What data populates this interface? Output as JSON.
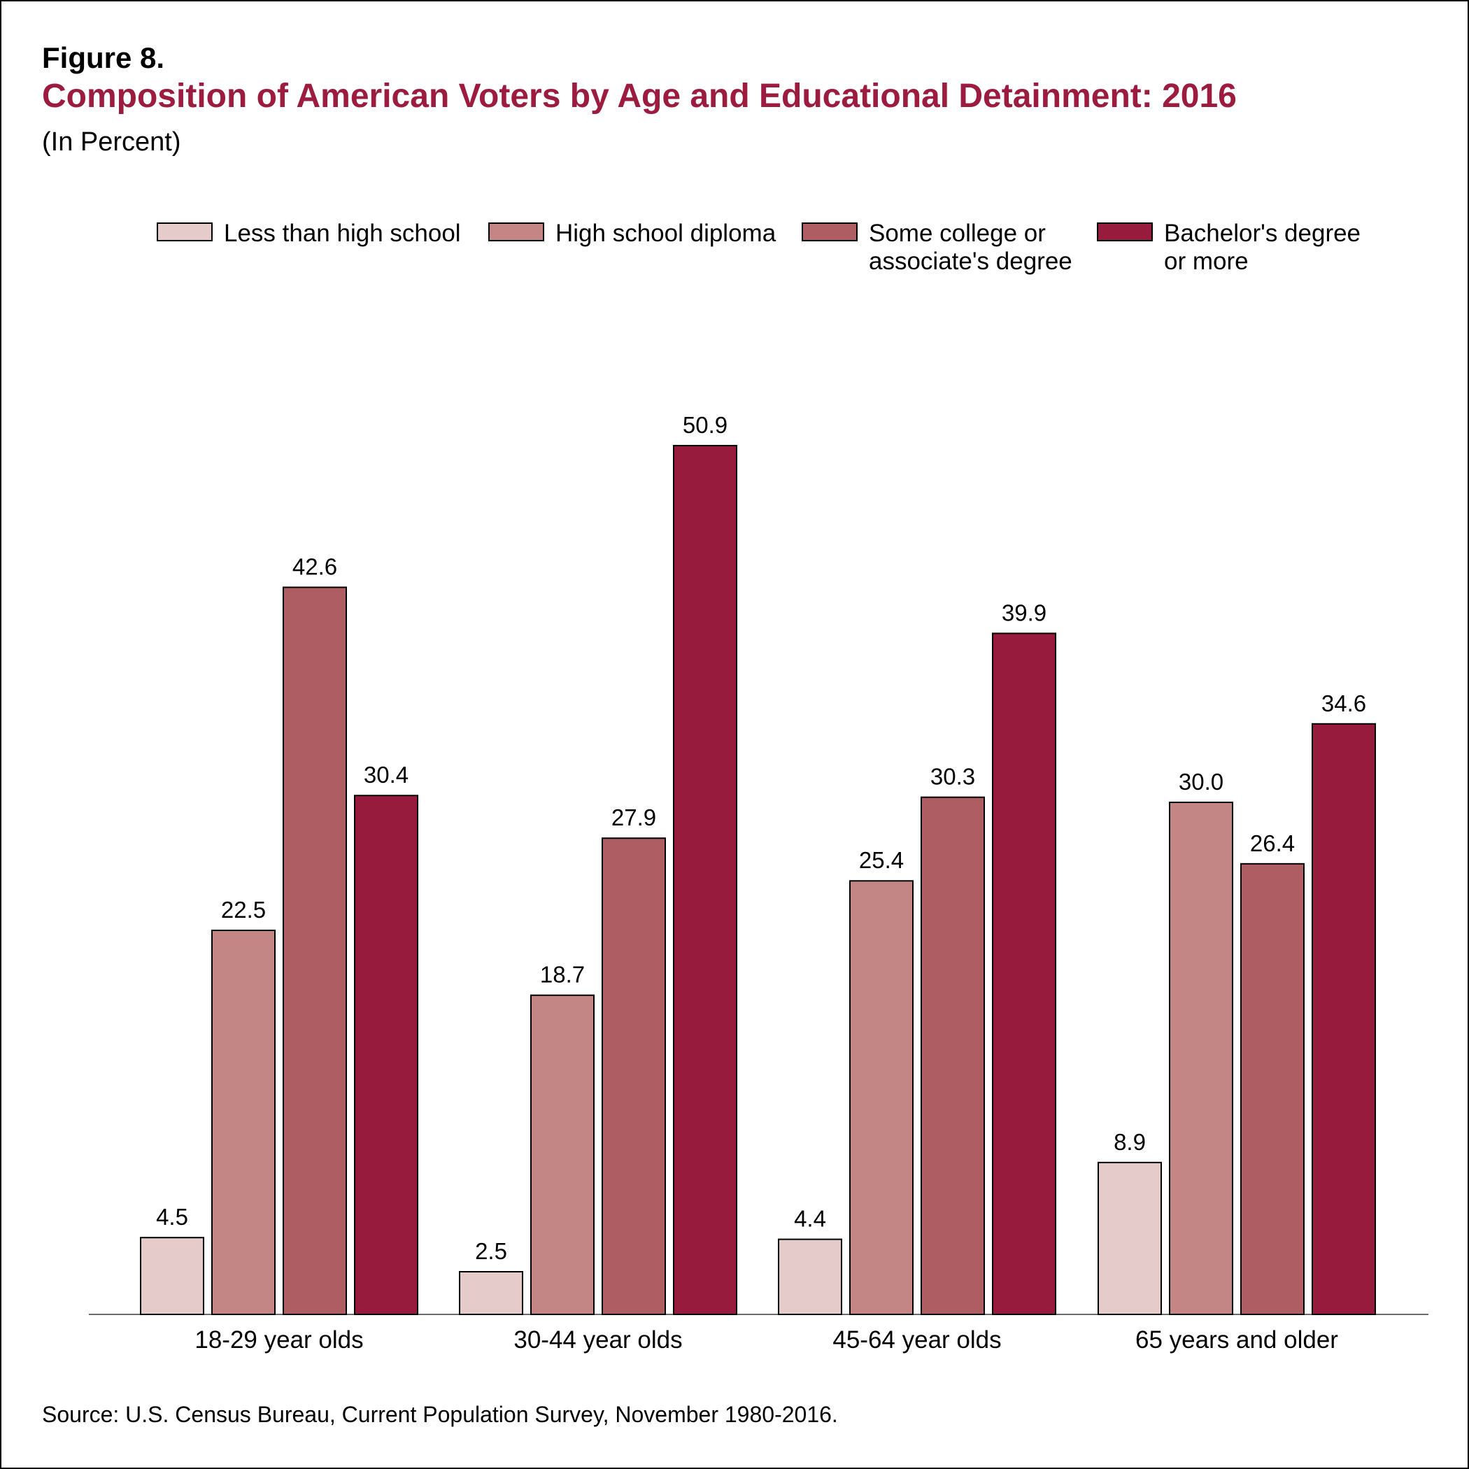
{
  "figure_label": "Figure 8.",
  "title": "Composition of American Voters by Age and Educational Detainment: 2016",
  "subtitle": "(In Percent)",
  "source": "Source: U.S. Census Bureau, Current Population Survey, November 1980-2016.",
  "legend": [
    {
      "label": "Less than high school",
      "color": "#e6cbcb"
    },
    {
      "label": "High school diploma",
      "color": "#c48685"
    },
    {
      "label": "Some college or\nassociate's degree",
      "color": "#ae5d62"
    },
    {
      "label": "Bachelor's degree\nor more",
      "color": "#961b3c"
    }
  ],
  "chart_data": {
    "type": "bar",
    "title": "Composition of American Voters by Age and Educational Detainment: 2016",
    "subtitle": "(In Percent)",
    "categories": [
      "18-29 year olds",
      "30-44 year olds",
      "45-64 year olds",
      "65 years and older"
    ],
    "series": [
      {
        "name": "Less than high school",
        "color": "#e6cbcb",
        "values": [
          4.5,
          2.5,
          4.4,
          8.9
        ]
      },
      {
        "name": "High school diploma",
        "color": "#c48685",
        "values": [
          22.5,
          18.7,
          25.4,
          30.0
        ]
      },
      {
        "name": "Some college or associate's degree",
        "color": "#ae5d62",
        "values": [
          42.6,
          27.9,
          30.3,
          26.4
        ]
      },
      {
        "name": "Bachelor's degree or more",
        "color": "#961b3c",
        "values": [
          30.4,
          50.9,
          39.9,
          34.6
        ]
      }
    ],
    "value_labels": [
      [
        "4.5",
        "2.5",
        "4.4",
        "8.9"
      ],
      [
        "22.5",
        "18.7",
        "25.4",
        "30.0"
      ],
      [
        "42.6",
        "27.9",
        "30.3",
        "26.4"
      ],
      [
        "30.4",
        "50.9",
        "39.9",
        "34.6"
      ]
    ],
    "ylim": [
      0,
      50.9
    ],
    "grid": false,
    "legend_position": "top"
  }
}
